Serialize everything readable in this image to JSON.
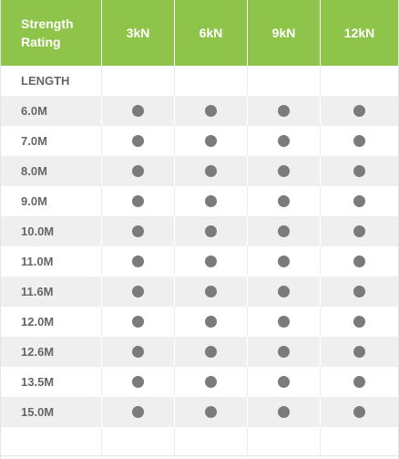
{
  "header": {
    "rating_line1": "Strength",
    "rating_line2": "Rating",
    "columns": [
      "3kN",
      "6kN",
      "9kN",
      "12kN"
    ]
  },
  "length_label": "LENGTH",
  "rows": [
    {
      "label": "6.0M",
      "available": [
        true,
        true,
        true,
        true
      ]
    },
    {
      "label": "7.0M",
      "available": [
        true,
        true,
        true,
        true
      ]
    },
    {
      "label": "8.0M",
      "available": [
        true,
        true,
        true,
        true
      ]
    },
    {
      "label": "9.0M",
      "available": [
        true,
        true,
        true,
        true
      ]
    },
    {
      "label": "10.0M",
      "available": [
        true,
        true,
        true,
        true
      ]
    },
    {
      "label": "11.0M",
      "available": [
        true,
        true,
        true,
        true
      ]
    },
    {
      "label": "11.6M",
      "available": [
        true,
        true,
        true,
        true
      ]
    },
    {
      "label": "12.0M",
      "available": [
        true,
        true,
        true,
        true
      ]
    },
    {
      "label": "12.6M",
      "available": [
        true,
        true,
        true,
        true
      ]
    },
    {
      "label": "13.5M",
      "available": [
        true,
        true,
        true,
        true
      ]
    },
    {
      "label": "15.0M",
      "available": [
        true,
        true,
        true,
        true
      ]
    }
  ],
  "colors": {
    "header_bg": "#8dc449",
    "dot": "#7a7b7c",
    "stripe": "#efefef"
  }
}
